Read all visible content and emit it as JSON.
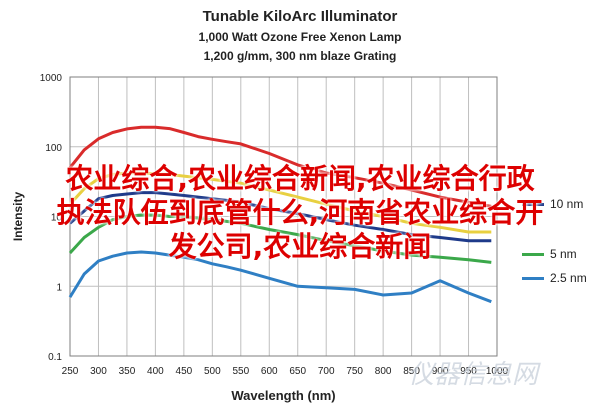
{
  "chart_data": {
    "type": "line",
    "title": "Tunable KiloArc Illuminator",
    "subtitle_1": "1,000 Watt Ozone Free Xenon Lamp",
    "subtitle_2": "1,200 g/mm, 300 nm blaze Grating",
    "xlabel": "Wavelength (nm)",
    "ylabel": "Intensity",
    "xlim": [
      250,
      1000
    ],
    "ylim": [
      0.1,
      1000
    ],
    "yscale": "log",
    "x_ticks": [
      "250",
      "300",
      "350",
      "400",
      "450",
      "500",
      "550",
      "600",
      "650",
      "700",
      "750",
      "800",
      "850",
      "900",
      "950",
      "1000"
    ],
    "y_ticks": [
      {
        "value": 0.1,
        "label": "0.1"
      },
      {
        "value": 1,
        "label": "1"
      },
      {
        "value": 10,
        "label": "10"
      },
      {
        "value": 100,
        "label": "100"
      },
      {
        "value": 1000,
        "label": "1000"
      }
    ],
    "grid": true,
    "legend_position": "right",
    "series": [
      {
        "name": "",
        "color": "#d92b2b",
        "x": [
          250,
          275,
          300,
          325,
          350,
          375,
          400,
          425,
          450,
          475,
          500,
          525,
          550,
          600,
          650,
          700,
          750,
          800,
          850,
          900,
          950,
          990
        ],
        "y": [
          50,
          90,
          130,
          160,
          180,
          190,
          190,
          182,
          160,
          140,
          128,
          118,
          110,
          80,
          55,
          42,
          36,
          30,
          24,
          19,
          16,
          14
        ]
      },
      {
        "name": "",
        "color": "#e8d040",
        "x": [
          250,
          275,
          300,
          325,
          350,
          375,
          400,
          425,
          450,
          475,
          500,
          525,
          550,
          600,
          650,
          700,
          750,
          800,
          850,
          900,
          950,
          990
        ],
        "y": [
          15,
          25,
          35,
          40,
          42,
          42,
          41,
          40,
          38,
          36,
          34,
          32,
          30,
          24,
          19,
          15,
          12,
          10,
          8,
          7,
          6,
          6
        ]
      },
      {
        "name": "10 nm",
        "color": "#1e3a8a",
        "x": [
          250,
          275,
          300,
          325,
          350,
          375,
          400,
          425,
          450,
          475,
          500,
          525,
          550,
          600,
          650,
          700,
          750,
          800,
          850,
          900,
          950,
          990
        ],
        "y": [
          8,
          12,
          18,
          20,
          21,
          22,
          22,
          21,
          20,
          19,
          18,
          17,
          16,
          13,
          11,
          9,
          7.5,
          6.5,
          5.5,
          5,
          4.5,
          4.5
        ]
      },
      {
        "name": "5 nm",
        "color": "#3ba84a",
        "x": [
          250,
          275,
          300,
          325,
          350,
          375,
          400,
          425,
          450,
          475,
          500,
          525,
          550,
          600,
          650,
          700,
          750,
          800,
          850,
          900,
          950,
          990
        ],
        "y": [
          3,
          5,
          7,
          9,
          10,
          10.5,
          10.5,
          10,
          10,
          9.5,
          9,
          8.5,
          8,
          6.5,
          5.5,
          4.5,
          3.8,
          3.2,
          2.8,
          2.6,
          2.4,
          2.2
        ]
      },
      {
        "name": "2.5 nm",
        "color": "#2f7fc4",
        "x": [
          250,
          275,
          300,
          325,
          350,
          375,
          400,
          425,
          450,
          475,
          500,
          525,
          550,
          600,
          650,
          700,
          750,
          800,
          850,
          900,
          950,
          990
        ],
        "y": [
          0.7,
          1.5,
          2.3,
          2.7,
          3.0,
          3.1,
          3.0,
          2.8,
          2.6,
          2.4,
          2.1,
          1.9,
          1.7,
          1.3,
          1.0,
          0.95,
          0.9,
          0.75,
          0.8,
          1.2,
          0.8,
          0.6
        ]
      }
    ]
  },
  "overlay": {
    "line1": "农业综合,农业综合新闻,农业综合行政",
    "line2": "执法队伍到底管什么,河南省农业综合开",
    "line3": "发公司,农业综合新闻"
  },
  "watermark": "仪器信息网"
}
